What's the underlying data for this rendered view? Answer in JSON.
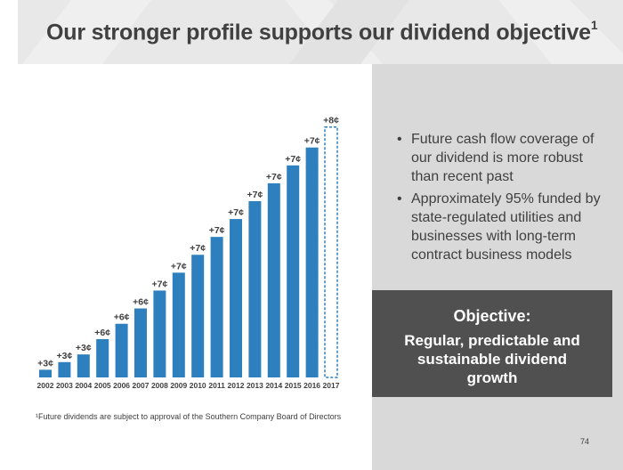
{
  "header": {
    "title": "Our stronger profile supports our dividend objective",
    "title_superscript": "1"
  },
  "bullets": [
    "Future cash flow coverage of our dividend is more robust than recent past",
    "Approximately 95% funded by state-regulated utilities and businesses with long-term contract business models"
  ],
  "objective": {
    "heading": "Objective:",
    "text": "Regular, predictable and sustainable dividend growth"
  },
  "footnote": "¹Future dividends are subject to approval of the Southern Company Board of Directors",
  "page_number": "74",
  "colors": {
    "bar": "#2e7fbe",
    "header_bg": "#e8e8e8",
    "panel_bg": "#d9d9d9",
    "objective_bg": "#505050"
  },
  "chart_data": {
    "type": "bar",
    "categories": [
      "2002",
      "2003",
      "2004",
      "2005",
      "2006",
      "2007",
      "2008",
      "2009",
      "2010",
      "2011",
      "2012",
      "2013",
      "2014",
      "2015",
      "2016",
      "2017"
    ],
    "values": [
      3,
      6,
      9,
      15,
      21,
      27,
      34,
      41,
      48,
      55,
      62,
      69,
      76,
      83,
      90,
      98
    ],
    "data_labels": [
      "+3¢",
      "+3¢",
      "+3¢",
      "+6¢",
      "+6¢",
      "+6¢",
      "+7¢",
      "+7¢",
      "+7¢",
      "+7¢",
      "+7¢",
      "+7¢",
      "+7¢",
      "+7¢",
      "+7¢",
      "+8¢"
    ],
    "projected": [
      false,
      false,
      false,
      false,
      false,
      false,
      false,
      false,
      false,
      false,
      false,
      false,
      false,
      false,
      false,
      true
    ],
    "ylim": [
      0,
      100
    ],
    "title": "",
    "xlabel": "",
    "ylabel": "",
    "grid": false,
    "legend": "none"
  }
}
